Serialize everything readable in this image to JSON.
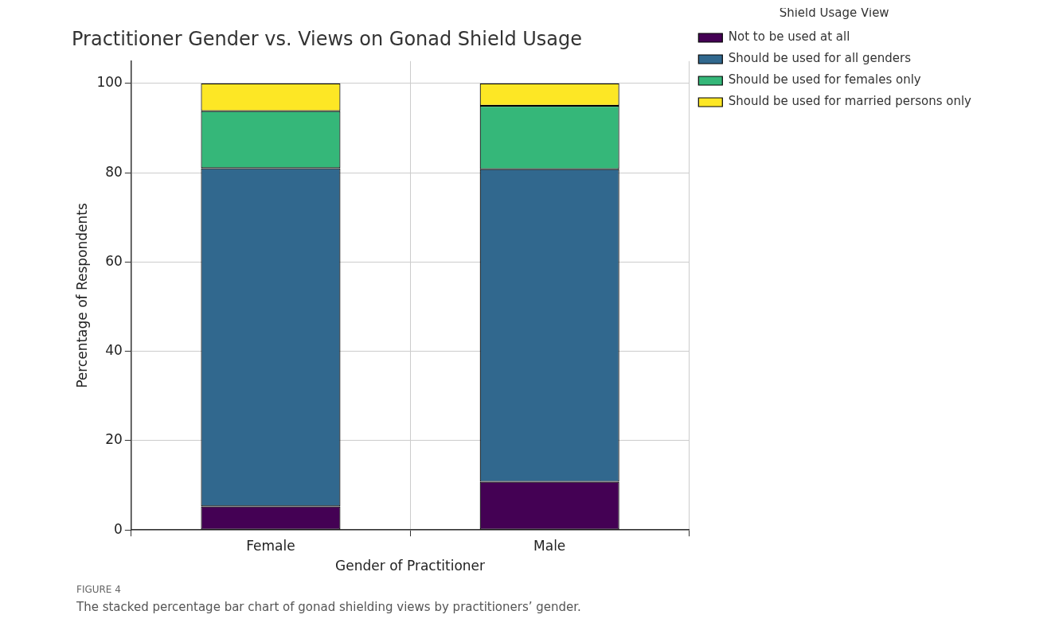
{
  "chart_data": {
    "type": "bar",
    "title": "Practitioner Gender vs. Views on Gonad Shield Usage",
    "xlabel": "Gender of Practitioner",
    "ylabel": "Percentage of Respondents",
    "legend_title": "Shield Usage View",
    "categories": [
      "Female",
      "Male"
    ],
    "series": [
      {
        "name": "Not to be used at all",
        "color": "#440154",
        "values": [
          5.3,
          10.8
        ]
      },
      {
        "name": "Should be used for all genders",
        "color": "#31688e",
        "values": [
          75.7,
          70.0
        ]
      },
      {
        "name": "Should be used for females only",
        "color": "#35b779",
        "values": [
          12.8,
          14.2
        ]
      },
      {
        "name": "Should be used for married persons only",
        "color": "#fde725",
        "values": [
          6.2,
          5.0
        ]
      }
    ],
    "stacked": true,
    "ylim": [
      0,
      105
    ],
    "yticks": [
      0,
      20,
      40,
      60,
      80,
      100
    ],
    "grid": true,
    "legend": "top right",
    "annotations": [
      "FIGURE 4",
      "The stacked percentage bar chart of gonad shielding views by practitioners’ gender."
    ]
  }
}
